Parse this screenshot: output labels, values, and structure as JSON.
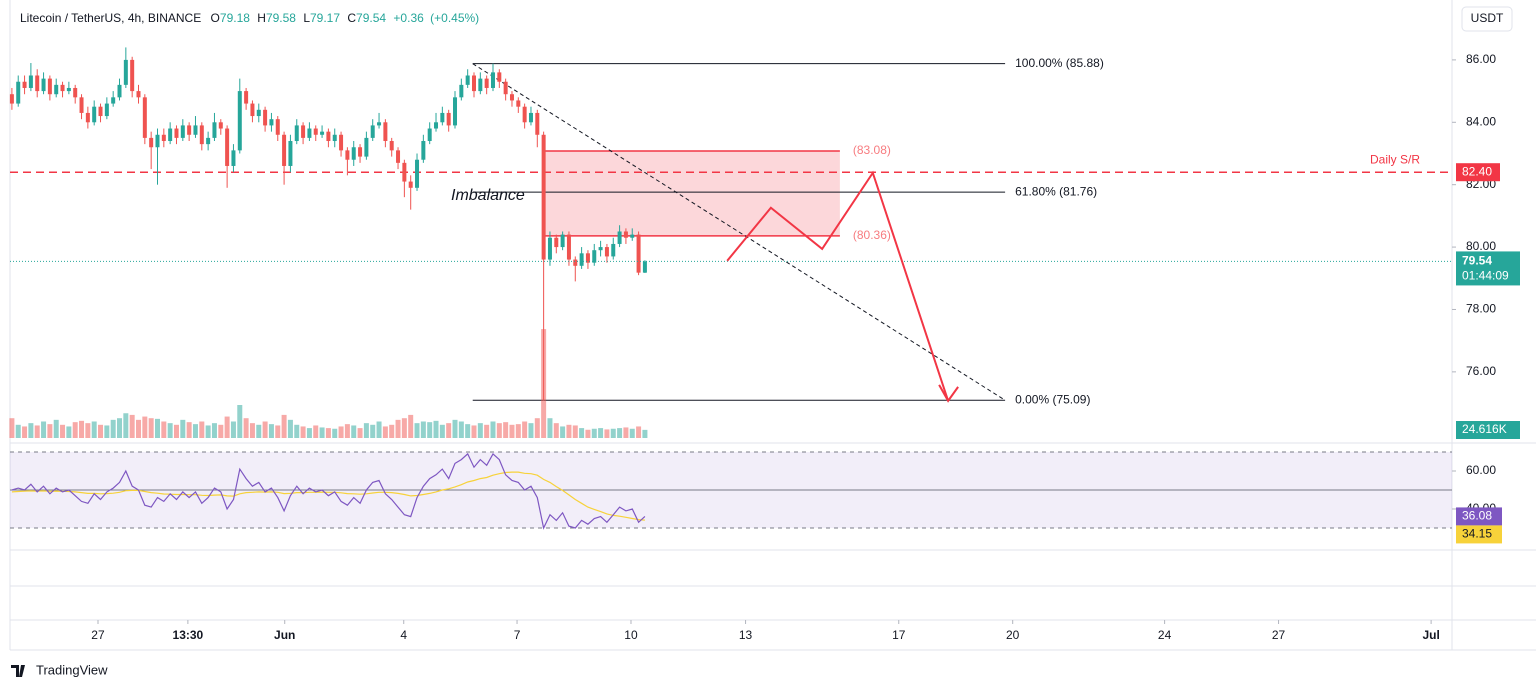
{
  "chart_data": {
    "type": "candlestick",
    "title": "Litecoin / TetherUS, 4h, BINANCE",
    "ohlc_letters": [
      "O",
      "H",
      "L",
      "C"
    ],
    "change": "+0.36",
    "change_pct": "(+0.45%)",
    "currency": "USDT",
    "up_color": "#26a69a",
    "down_color": "#ef5350",
    "open": [
      84.9,
      84.6,
      85.3,
      85.1,
      85.5,
      85.0,
      85.4,
      84.9,
      85.2,
      85.0,
      85.1,
      84.8,
      84.3,
      84.0,
      84.5,
      84.2,
      84.6,
      84.8,
      85.2,
      86.0,
      85.0,
      84.8,
      83.5,
      83.2,
      83.6,
      83.4,
      83.8,
      83.5,
      83.9,
      83.6,
      83.9,
      83.3,
      83.5,
      84.0,
      83.8,
      82.6,
      83.1,
      85.0,
      84.6,
      84.2,
      84.4,
      83.9,
      84.1,
      83.6,
      82.6,
      83.4,
      83.9,
      83.5,
      83.8,
      83.6,
      83.7,
      83.4,
      83.6,
      83.1,
      82.8,
      83.2,
      82.9,
      83.5,
      83.9,
      84.0,
      83.4,
      83.1,
      82.7,
      82.1,
      81.9,
      82.8,
      83.4,
      83.8,
      84.0,
      84.3,
      83.9,
      84.8,
      85.2,
      85.5,
      85.0,
      85.4,
      85.1,
      85.6,
      85.3,
      84.9,
      84.7,
      84.5,
      84.0,
      84.3,
      83.6,
      79.6,
      80.3,
      80.0,
      80.4,
      79.6,
      79.4,
      79.8,
      79.5,
      79.9,
      80.0,
      79.7,
      80.1,
      80.5,
      80.3,
      80.4,
      79.18
    ],
    "high": [
      85.1,
      85.5,
      85.5,
      85.9,
      85.7,
      85.6,
      85.5,
      85.4,
      85.3,
      85.3,
      85.2,
      84.9,
      84.5,
      84.7,
      84.6,
      84.8,
      85.0,
      85.4,
      86.4,
      86.1,
      85.2,
      84.9,
      83.7,
      83.8,
      83.8,
      84.0,
      83.9,
      84.1,
      84.0,
      84.2,
      84.0,
      83.7,
      84.3,
      84.1,
      83.9,
      83.3,
      85.4,
      85.1,
      84.7,
      84.6,
      84.5,
      84.3,
      84.2,
      83.7,
      83.6,
      84.1,
      84.0,
      84.0,
      83.9,
      83.9,
      83.8,
      83.8,
      83.7,
      83.2,
      83.4,
      83.3,
      83.7,
      84.1,
      84.3,
      84.1,
      83.5,
      83.2,
      82.8,
      82.3,
      83.0,
      83.6,
      84.0,
      84.3,
      84.5,
      84.4,
      85.0,
      85.4,
      85.7,
      85.6,
      85.6,
      85.5,
      85.88,
      85.7,
      85.4,
      85.0,
      84.8,
      84.6,
      84.5,
      84.4,
      83.7,
      80.5,
      80.4,
      80.5,
      80.5,
      79.7,
      80.0,
      79.9,
      80.1,
      80.2,
      80.1,
      80.3,
      80.7,
      80.6,
      80.6,
      80.5,
      79.58
    ],
    "low": [
      84.4,
      84.5,
      84.9,
      85.0,
      84.8,
      84.9,
      84.7,
      84.8,
      84.8,
      84.9,
      84.6,
      84.1,
      83.8,
      83.9,
      84.0,
      84.1,
      84.5,
      84.7,
      85.1,
      84.8,
      84.6,
      83.3,
      82.5,
      82.0,
      83.2,
      83.3,
      83.3,
      83.4,
      83.4,
      83.5,
      83.1,
      83.1,
      83.4,
      83.6,
      81.9,
      82.4,
      83.0,
      84.4,
      84.0,
      84.0,
      83.7,
      83.7,
      83.4,
      82.0,
      82.4,
      83.3,
      83.3,
      83.4,
      83.4,
      83.5,
      83.2,
      83.2,
      82.9,
      82.3,
      82.6,
      82.7,
      82.8,
      83.4,
      83.8,
      83.2,
      82.9,
      82.5,
      81.6,
      81.2,
      81.8,
      82.7,
      83.3,
      83.7,
      83.9,
      83.7,
      83.8,
      84.7,
      85.1,
      84.8,
      84.9,
      84.9,
      85.0,
      85.1,
      84.7,
      84.5,
      84.3,
      83.8,
      83.9,
      83.2,
      75.09,
      79.4,
      79.8,
      79.9,
      79.4,
      78.9,
      79.3,
      79.3,
      79.4,
      79.7,
      79.5,
      79.6,
      80.0,
      80.1,
      80.2,
      79.1,
      79.17
    ],
    "close": [
      84.6,
      85.3,
      85.1,
      85.5,
      85.0,
      85.4,
      84.9,
      85.2,
      85.0,
      85.1,
      84.8,
      84.3,
      84.0,
      84.5,
      84.2,
      84.6,
      84.8,
      85.2,
      86.0,
      85.0,
      84.8,
      83.5,
      83.2,
      83.6,
      83.4,
      83.8,
      83.5,
      83.9,
      83.6,
      83.9,
      83.3,
      83.5,
      84.0,
      83.8,
      82.6,
      83.1,
      85.0,
      84.6,
      84.2,
      84.4,
      83.9,
      84.1,
      83.6,
      82.6,
      83.4,
      83.9,
      83.5,
      83.8,
      83.6,
      83.7,
      83.4,
      83.6,
      83.1,
      82.8,
      83.2,
      82.9,
      83.5,
      83.9,
      84.0,
      83.4,
      83.1,
      82.7,
      82.1,
      81.9,
      82.8,
      83.4,
      83.8,
      84.0,
      84.3,
      83.9,
      84.8,
      85.2,
      85.5,
      85.0,
      85.4,
      85.1,
      85.6,
      85.3,
      84.9,
      84.7,
      84.5,
      84.0,
      84.3,
      83.6,
      79.6,
      80.3,
      80.0,
      80.4,
      79.6,
      79.4,
      79.8,
      79.5,
      79.9,
      80.0,
      79.7,
      80.1,
      80.5,
      80.3,
      80.4,
      79.18,
      79.54
    ],
    "xlim": [
      -0.3,
      227.5
    ],
    "xticks": [
      {
        "value": 13.6,
        "label": "27"
      },
      {
        "value": 27.8,
        "label": "13:30"
      },
      {
        "value": 43.1,
        "label": "Jun"
      },
      {
        "value": 61.9,
        "label": "4"
      },
      {
        "value": 79.8,
        "label": "7"
      },
      {
        "value": 97.8,
        "label": "10"
      },
      {
        "value": 115.9,
        "label": "13"
      },
      {
        "value": 140.1,
        "label": "17"
      },
      {
        "value": 158.1,
        "label": "20"
      },
      {
        "value": 182.1,
        "label": "24"
      },
      {
        "value": 200.1,
        "label": "27"
      },
      {
        "value": 224.2,
        "label": "Jul"
      }
    ],
    "ylim": [
      73.88,
      87.92
    ],
    "yticks": [
      {
        "value": 76,
        "label": "76.00"
      },
      {
        "value": 78,
        "label": "78.00"
      },
      {
        "value": 80,
        "label": "80.00"
      },
      {
        "value": 82,
        "label": "82.00"
      },
      {
        "value": 84,
        "label": "84.00"
      },
      {
        "value": 86,
        "label": "86.00"
      }
    ],
    "countdown": "01:44:09",
    "volume": {
      "values": [
        60,
        40,
        35,
        45,
        38,
        50,
        42,
        55,
        40,
        35,
        48,
        52,
        45,
        50,
        40,
        38,
        55,
        60,
        75,
        70,
        55,
        65,
        60,
        58,
        50,
        45,
        40,
        55,
        48,
        42,
        50,
        38,
        45,
        40,
        65,
        50,
        100,
        60,
        45,
        40,
        50,
        42,
        38,
        70,
        55,
        40,
        35,
        30,
        38,
        32,
        30,
        28,
        35,
        42,
        38,
        30,
        45,
        40,
        50,
        35,
        40,
        55,
        60,
        70,
        45,
        50,
        48,
        52,
        40,
        45,
        55,
        50,
        42,
        38,
        45,
        40,
        50,
        45,
        48,
        40,
        42,
        50,
        45,
        60,
        330,
        60,
        45,
        35,
        40,
        38,
        30,
        25,
        28,
        30,
        26,
        28,
        30,
        32,
        28,
        35,
        24.616
      ],
      "last_label": "24.616K"
    },
    "rsi": {
      "values": [
        50,
        51,
        50,
        53,
        49,
        52,
        48,
        51,
        49,
        50,
        47,
        44,
        43,
        48,
        45,
        49,
        51,
        54,
        60,
        52,
        50,
        42,
        41,
        46,
        44,
        48,
        45,
        49,
        46,
        49,
        43,
        46,
        51,
        49,
        40,
        45,
        61,
        56,
        52,
        54,
        49,
        51,
        46,
        39,
        47,
        52,
        48,
        51,
        49,
        50,
        47,
        49,
        44,
        42,
        46,
        43,
        50,
        54,
        55,
        48,
        45,
        41,
        37,
        36,
        46,
        52,
        56,
        58,
        61,
        56,
        64,
        66,
        69,
        62,
        66,
        63,
        69,
        66,
        58,
        55,
        54,
        50,
        52,
        46,
        30,
        37,
        34,
        38,
        31,
        30,
        34,
        32,
        35,
        36,
        33,
        37,
        41,
        39,
        40,
        33,
        36.08
      ],
      "ma": [
        49,
        49.2,
        49.4,
        49.5,
        49.4,
        49.5,
        49.3,
        49.4,
        49.3,
        49.2,
        49,
        48.6,
        48.2,
        48.2,
        48,
        48.1,
        48.3,
        48.8,
        49.6,
        49.8,
        49.8,
        49.2,
        48.6,
        48.3,
        47.9,
        47.8,
        47.6,
        47.6,
        47.5,
        47.5,
        47.2,
        47.1,
        47.3,
        47.4,
        46.9,
        46.8,
        48,
        48.6,
        48.8,
        49,
        48.9,
        49,
        48.8,
        48.1,
        48.2,
        48.6,
        48.6,
        48.8,
        48.8,
        48.9,
        48.8,
        48.8,
        48.5,
        48.1,
        48,
        47.8,
        48,
        48.4,
        48.8,
        48.8,
        48.6,
        48.2,
        47.6,
        46.9,
        47.1,
        47.6,
        48.2,
        49,
        50,
        50.6,
        51.6,
        52.8,
        54.2,
        55,
        56,
        56.6,
        57.8,
        58.6,
        59.2,
        59.4,
        59.4,
        58.8,
        58.6,
        57.8,
        55.6,
        54,
        51.8,
        49.8,
        47.4,
        45,
        43,
        41,
        39.8,
        38.6,
        37.4,
        36.6,
        36.2,
        35.6,
        35,
        34.4,
        34.15
      ],
      "color": "#7e57c2",
      "ma_color": "#f7d23a",
      "ylim": [
        18.4,
        74.74
      ],
      "yticks": [
        {
          "value": 40,
          "label": "40.00"
        },
        {
          "value": 60,
          "label": "60.00"
        }
      ],
      "bands": [
        30,
        70
      ],
      "mid": 50
    },
    "support": {
      "name": "Daily S/R",
      "value": 82.4,
      "label": "82.40",
      "color": "#f23645"
    },
    "fib": {
      "x_range": [
        72.8,
        156.9
      ],
      "levels": [
        {
          "value": 85.88,
          "label": "100.00% (85.88)"
        },
        {
          "value": 81.76,
          "label": "61.80% (81.76)"
        },
        {
          "value": 75.09,
          "label": "0.00% (75.09)"
        }
      ]
    },
    "imbalance": {
      "name": "Imbalance",
      "x_range": [
        83.9,
        130.8
      ],
      "top": {
        "value": 83.08,
        "label": "(83.08)"
      },
      "bottom": {
        "value": 80.36,
        "label": "(80.36)"
      }
    },
    "projection": {
      "x": [
        113,
        119.9,
        128,
        136,
        147.9
      ],
      "y": [
        79.56,
        81.26,
        79.94,
        82.38,
        75.07
      ]
    },
    "brand": "TradingView"
  }
}
